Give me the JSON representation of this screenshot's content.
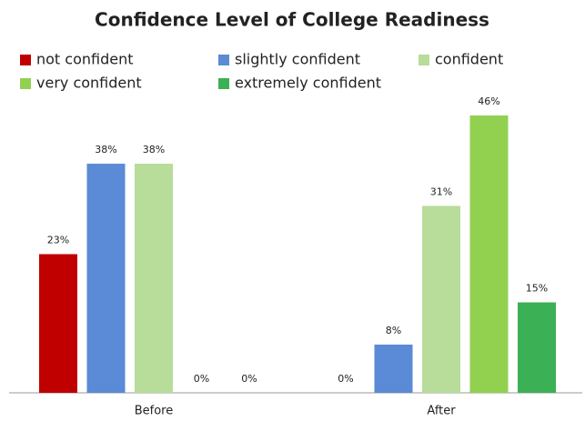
{
  "chart_data": {
    "type": "bar",
    "title": "Confidence Level of College Readiness",
    "categories": [
      "Before",
      "After"
    ],
    "series": [
      {
        "name": "not confident",
        "color": "#c00000",
        "values": [
          23,
          0
        ],
        "value_labels": [
          "23%",
          "0%"
        ]
      },
      {
        "name": "slightly confident",
        "color": "#5b8ad6",
        "values": [
          38,
          8
        ],
        "value_labels": [
          "38%",
          "8%"
        ]
      },
      {
        "name": "confident",
        "color": "#b8dc9a",
        "values": [
          38,
          31
        ],
        "value_labels": [
          "38%",
          "31%"
        ]
      },
      {
        "name": "very confident",
        "color": "#92d050",
        "values": [
          0,
          46
        ],
        "value_labels": [
          "0%",
          "46%"
        ]
      },
      {
        "name": "extremely confident",
        "color": "#3cb054",
        "values": [
          0,
          15
        ],
        "value_labels": [
          "0%",
          "15%"
        ]
      }
    ]
  }
}
